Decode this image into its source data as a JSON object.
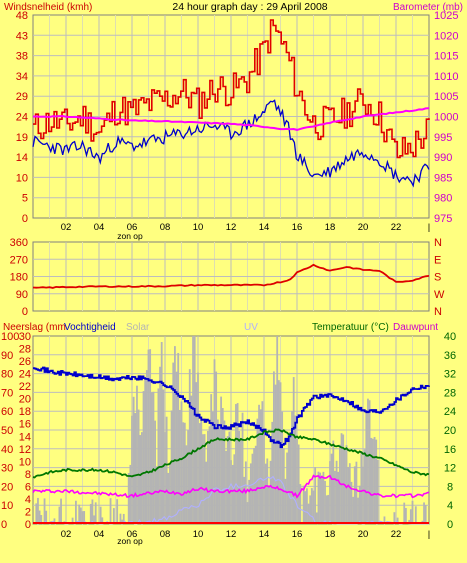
{
  "colors": {
    "background": "#FFFF80",
    "plot_bg": "#FFFF80",
    "grid": "#C8C8C8",
    "wind_gust": "#E00000",
    "wind_avg": "#0000CC",
    "barometer": "#FF00FF",
    "direction": "#DD0000",
    "temperature": "#007700",
    "dewpoint": "#FF00FF",
    "humidity": "#0000CC",
    "solar": "#B4B4B4",
    "uv": "#B0B0FF",
    "rain": "#FF0000",
    "left_axis": "#CC0000",
    "right_axis_pink": "#CC00CC",
    "right_axis_green": "#006600"
  },
  "chart_data": [
    {
      "type": "line",
      "title": "24 hour graph day : 29 April 2008",
      "ylabel": "Windsnelheid (kmh)",
      "y2label": "Barometer (mb)",
      "ylim": [
        0,
        48
      ],
      "y2lim": [
        975,
        1025
      ],
      "yticks": [
        "0",
        "5",
        "10",
        "14",
        "19",
        "24",
        "29",
        "34",
        "38",
        "43",
        "48"
      ],
      "y2ticks": [
        "975",
        "980",
        "985",
        "990",
        "995",
        "1000",
        "1005",
        "1010",
        "1015",
        "1020",
        "1025"
      ],
      "xticks": [
        "02",
        "04",
        "06",
        "08",
        "10",
        "12",
        "14",
        "16",
        "18",
        "20",
        "22",
        "|"
      ],
      "annotation": "zon op",
      "series": [
        {
          "role": "gust",
          "x": [
            0,
            1,
            2,
            3,
            4,
            5,
            6,
            7,
            8,
            9,
            10,
            11,
            12,
            13,
            14,
            14.5,
            15,
            15.5,
            16,
            17,
            18,
            19,
            20,
            21,
            22,
            23,
            24
          ],
          "values": [
            21,
            23,
            22,
            24,
            20,
            26,
            25,
            27,
            28,
            30,
            27,
            31,
            30,
            33,
            40,
            45,
            42,
            37,
            30,
            22,
            23,
            25,
            28,
            24,
            15,
            17,
            21
          ]
        },
        {
          "role": "average",
          "x": [
            0,
            1,
            2,
            3,
            4,
            5,
            6,
            7,
            8,
            9,
            10,
            11,
            12,
            13,
            14,
            14.5,
            15,
            15.5,
            16,
            17,
            18,
            19,
            20,
            21,
            22,
            23,
            24
          ],
          "values": [
            18,
            17,
            16,
            17,
            14,
            18,
            17,
            18,
            19,
            20,
            21,
            22,
            20,
            22,
            25,
            28,
            25,
            21,
            15,
            10,
            11,
            14,
            16,
            14,
            10,
            9,
            12
          ]
        },
        {
          "role": "barometer",
          "x": [
            0,
            2,
            4,
            6,
            8,
            10,
            12,
            14,
            15,
            16,
            17,
            18,
            20,
            22,
            24
          ],
          "values": [
            1000,
            1000,
            999.5,
            999,
            998.8,
            998.5,
            998.2,
            997.5,
            997,
            996.8,
            997.5,
            998.5,
            1000,
            1001,
            1002
          ]
        }
      ]
    },
    {
      "type": "line",
      "ylim": [
        0,
        360
      ],
      "yticks": [
        "0",
        "90",
        "180",
        "270",
        "360"
      ],
      "y2ticks": [
        "N",
        "W",
        "S",
        "E",
        "N"
      ],
      "xticks": [
        "02",
        "04",
        "06",
        "08",
        "10",
        "12",
        "14",
        "16",
        "18",
        "20",
        "22",
        "|"
      ],
      "series": [
        {
          "role": "direction",
          "x": [
            0,
            2,
            4,
            6,
            8,
            10,
            12,
            14,
            15.5,
            16,
            17,
            18,
            19,
            20,
            21,
            22,
            23,
            24
          ],
          "values": [
            120,
            125,
            128,
            128,
            130,
            135,
            135,
            135,
            160,
            200,
            240,
            210,
            230,
            215,
            210,
            150,
            160,
            185
          ]
        }
      ]
    },
    {
      "type": "line",
      "ylabel": "Neerslag (mm",
      "ylabel2": "Vochtigheid",
      "solar_label": "Solar",
      "uv_label": "UV",
      "y2label": "Temperatuur (°C)",
      "y2label2": "Dauwpunt",
      "ylim": [
        0,
        100
      ],
      "y2lim": [
        0,
        40
      ],
      "yticks": [
        "0",
        "10",
        "20",
        "30",
        "40",
        "50",
        "60",
        "70",
        "80",
        "90",
        "100"
      ],
      "rainticks": [
        "0",
        "2",
        "4",
        "6",
        "8",
        "10",
        "12",
        "14",
        "16",
        "18",
        "20",
        "22",
        "24",
        "26",
        "28",
        "30"
      ],
      "y2ticks": [
        "0",
        "4",
        "8",
        "12",
        "16",
        "20",
        "24",
        "28",
        "32",
        "36",
        "40"
      ],
      "xticks": [
        "02",
        "04",
        "06",
        "08",
        "10",
        "12",
        "14",
        "16",
        "18",
        "20",
        "22",
        "|"
      ],
      "annotation": "zon op",
      "series": [
        {
          "role": "humidity",
          "x": [
            0,
            1,
            2,
            3,
            4,
            5,
            6,
            7,
            8,
            9,
            10,
            11,
            11.5,
            12,
            13,
            14,
            14.5,
            15,
            15.5,
            16,
            17,
            18,
            19,
            20,
            21,
            22,
            23,
            24
          ],
          "values": [
            84,
            81,
            80,
            79,
            78,
            77,
            78,
            77,
            74,
            68,
            57,
            52,
            51,
            52,
            54,
            50,
            44,
            42,
            46,
            56,
            68,
            68,
            66,
            60,
            60,
            66,
            72,
            74
          ]
        },
        {
          "role": "temperature",
          "x": [
            0,
            1,
            2,
            3,
            4,
            5,
            6,
            7,
            8,
            9,
            10,
            11,
            12,
            13,
            14,
            15,
            16,
            17,
            18,
            19,
            20,
            21,
            22,
            23,
            24
          ],
          "values": [
            10,
            11,
            11.5,
            11.5,
            11.5,
            11,
            10,
            11,
            12.5,
            14,
            16,
            18,
            18,
            18,
            19.5,
            20,
            18.5,
            18,
            17,
            16,
            15,
            14,
            12.5,
            11,
            10.5
          ]
        },
        {
          "role": "dewpoint",
          "x": [
            0,
            2,
            4,
            6,
            7,
            8,
            9,
            10,
            11,
            12,
            13,
            14,
            15,
            16,
            17,
            18,
            19,
            20,
            21,
            22,
            23,
            24
          ],
          "values": [
            7,
            7,
            6.5,
            6,
            6.5,
            7,
            6.5,
            7.5,
            7,
            7,
            7,
            8,
            7.5,
            6,
            10,
            10,
            8,
            7,
            6,
            6,
            6,
            6.5
          ]
        },
        {
          "role": "solar",
          "x": [
            0,
            5.7,
            6.1,
            6.6,
            7.1,
            7.5,
            7.8,
            8.2,
            8.6,
            9.2,
            9.8,
            10.5,
            11,
            12,
            12.5,
            13,
            13.8,
            14.3,
            14.8,
            15.2,
            15.8,
            16.3,
            16.8,
            17.6,
            18.2,
            19,
            19.8,
            20.3,
            20.8,
            21,
            24
          ],
          "values": [
            0,
            0,
            75,
            55,
            95,
            38,
            100,
            25,
            100,
            45,
            95,
            30,
            75,
            35,
            60,
            25,
            65,
            20,
            100,
            28,
            70,
            8,
            20,
            15,
            40,
            35,
            20,
            55,
            50,
            0,
            0
          ]
        },
        {
          "role": "uv",
          "x": [
            0,
            6,
            7.5,
            8.5,
            9,
            10,
            11,
            12,
            13,
            14,
            14.5,
            15,
            16,
            17,
            18,
            24
          ],
          "values": [
            0,
            0,
            2,
            3,
            8,
            10,
            18,
            20,
            21,
            24,
            25,
            22,
            10,
            2,
            0,
            0
          ]
        },
        {
          "role": "rain",
          "x": [
            0,
            24
          ],
          "values": [
            0,
            0
          ]
        }
      ]
    }
  ]
}
